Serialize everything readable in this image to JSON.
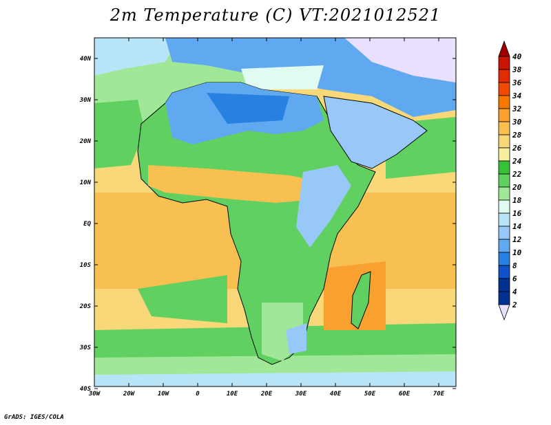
{
  "title": "2m Temperature (C) VT:2021012521",
  "credit": "GrADS: IGES/COLA",
  "map": {
    "lon_labels": [
      "30W",
      "20W",
      "10W",
      "0",
      "10E",
      "20E",
      "30E",
      "40E",
      "50E",
      "60E",
      "70E"
    ],
    "lat_labels": [
      "40N",
      "30N",
      "20N",
      "10N",
      "EQ",
      "10S",
      "20S",
      "30S",
      "40S"
    ]
  },
  "colorbar": {
    "levels": [
      "40",
      "38",
      "36",
      "34",
      "32",
      "30",
      "28",
      "26",
      "24",
      "22",
      "20",
      "18",
      "16",
      "14",
      "12",
      "10",
      "8",
      "6",
      "4",
      "2"
    ],
    "colors": [
      "#a00000",
      "#c81400",
      "#e02c00",
      "#f04a00",
      "#f87800",
      "#f8a030",
      "#f8c050",
      "#f8d878",
      "#f8f0a0",
      "#38c038",
      "#60d060",
      "#a0e898",
      "#e0fcf0",
      "#b8e4f8",
      "#98c8f8",
      "#60a8f0",
      "#2880e0",
      "#1050c8",
      "#003090",
      "#e8e0fc"
    ]
  }
}
